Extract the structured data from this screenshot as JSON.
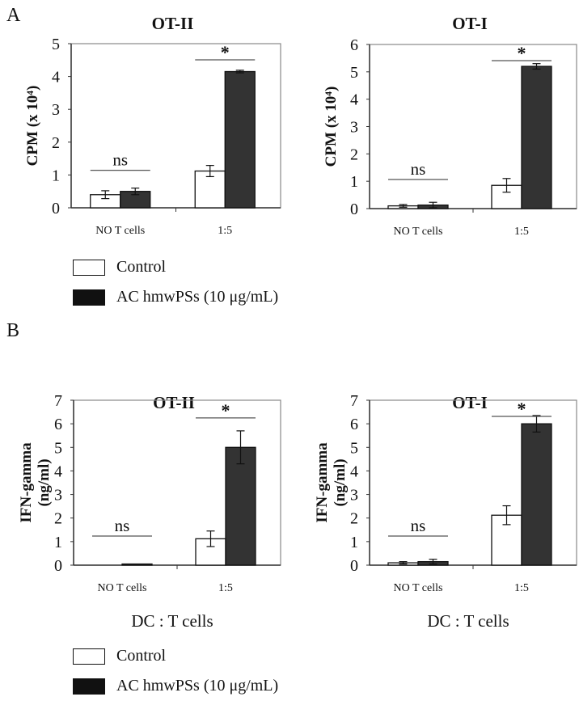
{
  "panel_labels": [
    "A",
    "B"
  ],
  "legend": [
    {
      "name": "Control",
      "color": "#ffffff"
    },
    {
      "name": "AC hmwPSs (10 μg/mL)",
      "color": "#333333"
    }
  ],
  "chart_data": [
    {
      "type": "bar",
      "panel": "A",
      "title": "OT-II",
      "ylabel": [
        "CPM (x 10⁴)"
      ],
      "xlabel": "",
      "categories": [
        "NO T cells",
        "1:5"
      ],
      "ylim": [
        0,
        5
      ],
      "yticks": [
        0,
        1,
        2,
        3,
        4,
        5
      ],
      "series": [
        {
          "name": "Control",
          "values": [
            0.4,
            1.12
          ],
          "errors": [
            0.12,
            0.17
          ]
        },
        {
          "name": "AC hmwPSs (10 μg/mL)",
          "values": [
            0.5,
            4.15
          ],
          "errors": [
            0.1,
            0.04
          ]
        }
      ],
      "annotations": [
        "ns",
        "*"
      ]
    },
    {
      "type": "bar",
      "panel": "A",
      "title": "OT-I",
      "ylabel": [
        "CPM (x 10⁴)"
      ],
      "xlabel": "",
      "categories": [
        "NO T cells",
        "1:5"
      ],
      "ylim": [
        0,
        6
      ],
      "yticks": [
        0,
        1,
        2,
        3,
        4,
        5,
        6
      ],
      "series": [
        {
          "name": "Control",
          "values": [
            0.1,
            0.85
          ],
          "errors": [
            0.05,
            0.25
          ]
        },
        {
          "name": "AC hmwPSs (10 μg/mL)",
          "values": [
            0.13,
            5.2
          ],
          "errors": [
            0.1,
            0.1
          ]
        }
      ],
      "annotations": [
        "ns",
        "*"
      ]
    },
    {
      "type": "bar",
      "panel": "B",
      "title": "OT-II",
      "ylabel": [
        "IFN-gamma",
        "(ng/ml)"
      ],
      "xlabel": "DC : T cells",
      "categories": [
        "NO T cells",
        "1:5"
      ],
      "ylim": [
        0,
        7
      ],
      "yticks": [
        0,
        1,
        2,
        3,
        4,
        5,
        6,
        7
      ],
      "series": [
        {
          "name": "Control",
          "values": [
            0.0,
            1.12
          ],
          "errors": [
            0.0,
            0.33
          ]
        },
        {
          "name": "AC hmwPSs (10 μg/mL)",
          "values": [
            0.05,
            5.0
          ],
          "errors": [
            0.0,
            0.7
          ]
        }
      ],
      "annotations": [
        "ns",
        "*"
      ]
    },
    {
      "type": "bar",
      "panel": "B",
      "title": "OT-I",
      "ylabel": [
        "IFN-gamma",
        "(ng/ml)"
      ],
      "xlabel": "DC : T cells",
      "categories": [
        "NO T cells",
        "1:5"
      ],
      "ylim": [
        0,
        7
      ],
      "yticks": [
        0,
        1,
        2,
        3,
        4,
        5,
        6,
        7
      ],
      "series": [
        {
          "name": "Control",
          "values": [
            0.1,
            2.12
          ],
          "errors": [
            0.05,
            0.4
          ]
        },
        {
          "name": "AC hmwPSs (10 μg/mL)",
          "values": [
            0.15,
            6.0
          ],
          "errors": [
            0.1,
            0.35
          ]
        }
      ],
      "annotations": [
        "ns",
        "*"
      ]
    }
  ]
}
